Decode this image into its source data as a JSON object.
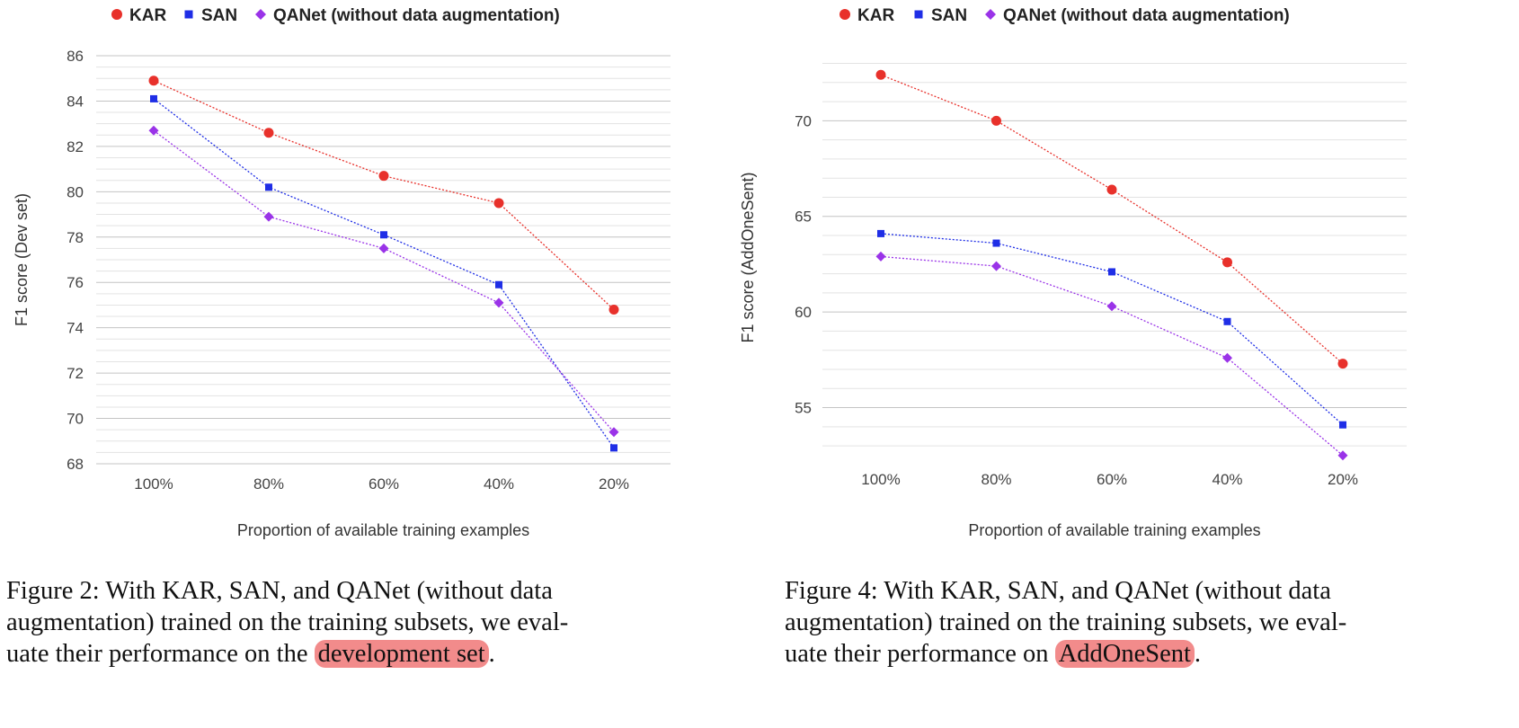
{
  "chart_data": [
    {
      "type": "line",
      "title": "",
      "xlabel": "Proportion of available training examples",
      "ylabel": "F1 score (Dev set)",
      "categories": [
        "100%",
        "80%",
        "60%",
        "40%",
        "20%"
      ],
      "ylim": [
        68,
        86
      ],
      "yticks": [
        68,
        70,
        72,
        74,
        76,
        78,
        80,
        82,
        84,
        86
      ],
      "grid": true,
      "legend": "top",
      "series": [
        {
          "name": "KAR",
          "color": "#e8312b",
          "marker": "circle",
          "values": [
            84.9,
            82.6,
            80.7,
            79.5,
            74.8
          ]
        },
        {
          "name": "SAN",
          "color": "#1f2ee6",
          "marker": "square",
          "values": [
            84.1,
            80.2,
            78.1,
            75.9,
            68.7
          ]
        },
        {
          "name": "QANet (without data augmentation)",
          "color": "#9a33e8",
          "marker": "diamond",
          "values": [
            82.7,
            78.9,
            77.5,
            75.1,
            69.4
          ]
        }
      ]
    },
    {
      "type": "line",
      "title": "",
      "xlabel": "Proportion of available training examples",
      "ylabel": "F1 score (AddOneSent)",
      "categories": [
        "100%",
        "80%",
        "60%",
        "40%",
        "20%"
      ],
      "ylim": [
        52.3,
        73.4
      ],
      "yticks": [
        55,
        60,
        65,
        70
      ],
      "grid": true,
      "legend": "top",
      "series": [
        {
          "name": "KAR",
          "color": "#e8312b",
          "marker": "circle",
          "values": [
            72.4,
            70.0,
            66.4,
            62.6,
            57.3
          ]
        },
        {
          "name": "SAN",
          "color": "#1f2ee6",
          "marker": "square",
          "values": [
            64.1,
            63.6,
            62.1,
            59.5,
            54.1
          ]
        },
        {
          "name": "QANet (without data augmentation)",
          "color": "#9a33e8",
          "marker": "diamond",
          "values": [
            62.9,
            62.4,
            60.3,
            57.6,
            52.5
          ]
        }
      ]
    }
  ],
  "captions": [
    {
      "line1": "Figure 2:  With KAR, SAN, and QANet (without data",
      "line2": "augmentation) trained on the training subsets, we eval-",
      "line3_pre": "uate their performance on the",
      "line3_hl": "development set",
      "line3_post": "."
    },
    {
      "line1": "Figure 4:  With KAR, SAN, and QANet (without data",
      "line2": "augmentation) trained on the training subsets, we eval-",
      "line3_pre": "uate their performance on ",
      "line3_hl": "AddOneSent",
      "line3_post": "."
    }
  ]
}
